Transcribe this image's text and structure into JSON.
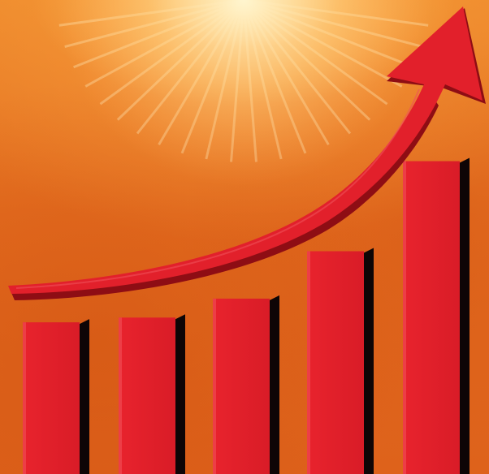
{
  "image": {
    "description_icon": "growth-chart-illustration",
    "colors": {
      "background": "#e0661c",
      "glow": "#ffe7a8",
      "bar_face": "#e2202b",
      "bar_shadow": "#0e0506",
      "arrow_face": "#e2202b",
      "arrow_side": "#8e0d14"
    }
  },
  "bars": [
    {
      "id": "bar-1",
      "level": 0.32
    },
    {
      "id": "bar-2",
      "level": 0.33
    },
    {
      "id": "bar-3",
      "level": 0.37
    },
    {
      "id": "bar-4",
      "level": 0.47
    },
    {
      "id": "bar-5",
      "level": 0.66
    }
  ]
}
